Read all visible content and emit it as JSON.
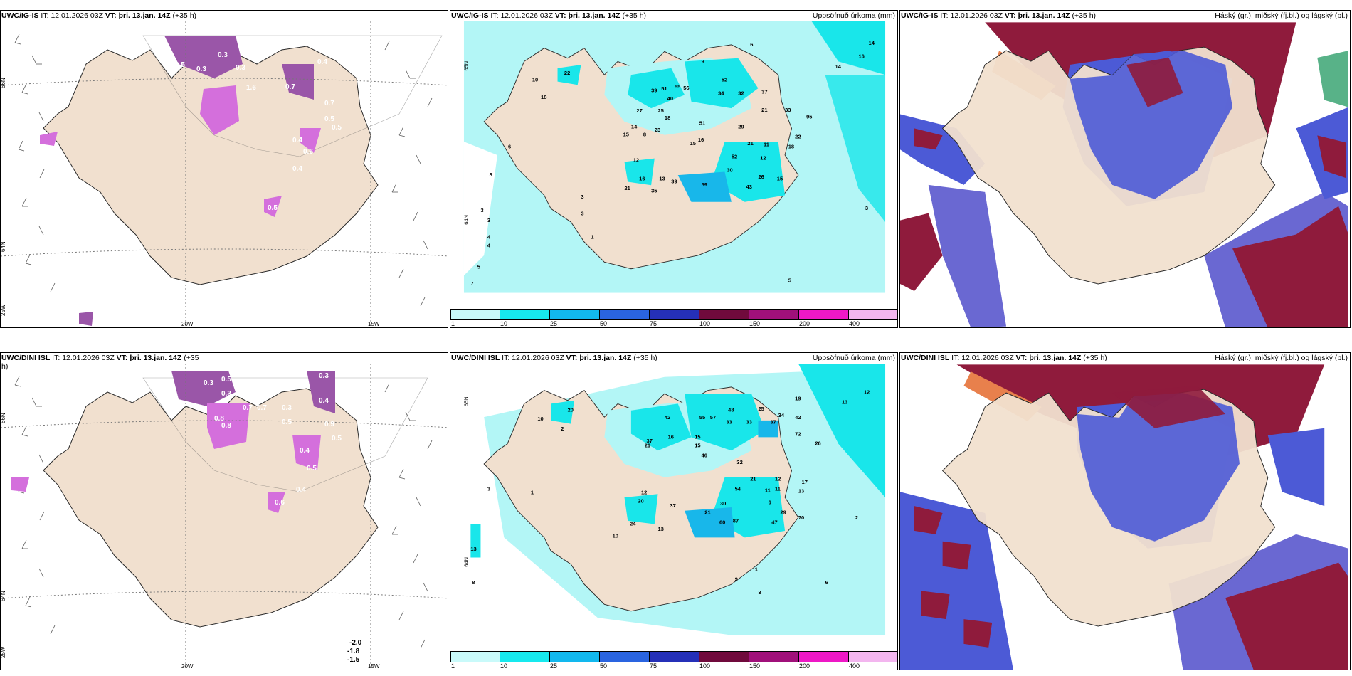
{
  "colors": {
    "land": "#f1e0cf",
    "coast": "#2a2a2a",
    "sea": "#ffffff",
    "precip_light": "#b3f6f6",
    "precip_cyan": "#19e6ea",
    "precip_blue": "#18b7ea",
    "cloud_blue": "#4c5ad6",
    "cloud_purple": "#6a68d2",
    "cloud_red": "#8f1b3c",
    "cloud_orange": "#e8804c",
    "pink": "#d46fdc",
    "purple": "#9a56a8"
  },
  "panels": [
    {
      "id": "top-left",
      "model": "UWC/IG-IS",
      "it_label": "IT:",
      "it_value": "12.01.2026 03Z",
      "vt_label": "VT:",
      "vt_value": "þri. 13.jan. 14Z",
      "lead": "(+35 h)",
      "right_title": "",
      "lat_labels": [
        "66N",
        "64N",
        "25W"
      ],
      "lon_labels": [
        "20W",
        "15W"
      ],
      "values": [
        "0.3",
        "0.5",
        "0.3",
        "0.3",
        "0.4",
        "1.6",
        "0.7",
        "0.7",
        "0.5",
        "0.5",
        "0.4",
        "0.6",
        "0.4",
        "0.5"
      ]
    },
    {
      "id": "top-middle",
      "model": "UWC/IG-IS",
      "it_label": "IT:",
      "it_value": "12.01.2026 03Z",
      "vt_label": "VT:",
      "vt_value": "þri. 13.jan. 14Z",
      "lead": "(+35 h)",
      "right_title": "Uppsöfnuð úrkoma (mm)",
      "lat_labels": [
        "65N",
        "64N"
      ],
      "values": [
        "14",
        "16",
        "14",
        "6",
        "9",
        "22",
        "10",
        "52",
        "18",
        "39",
        "51",
        "55",
        "56",
        "34",
        "32",
        "37",
        "37",
        "27",
        "40",
        "21",
        "33",
        "95",
        "25",
        "18",
        "51",
        "29",
        "22",
        "18",
        "14",
        "15",
        "8",
        "23",
        "16",
        "21",
        "11",
        "15",
        "52",
        "12",
        "12",
        "30",
        "26",
        "39",
        "59",
        "15",
        "43",
        "16",
        "21",
        "35",
        "13",
        "6",
        "3",
        "3",
        "3",
        "3",
        "4",
        "4",
        "5",
        "7",
        "3",
        "1",
        "5",
        "3"
      ]
    },
    {
      "id": "top-right",
      "model": "UWC/IG-IS",
      "it_label": "IT:",
      "it_value": "12.01.2026 03Z",
      "vt_label": "VT:",
      "vt_value": "þri. 13.jan. 14Z",
      "lead": "(+35 h)",
      "right_title": "Háský (gr.), miðský (fj.bl.) og lágský (bl.)"
    },
    {
      "id": "bottom-left",
      "model": "UWC/DINI ISL",
      "it_label": "IT:",
      "it_value": "12.01.2026 03Z",
      "vt_label": "VT:",
      "vt_value": "þri. 13.jan. 14Z",
      "lead": "(+35",
      "lead_wrap": "h)",
      "right_title": "",
      "lat_labels": [
        "66N",
        "64N",
        "25W"
      ],
      "lon_labels": [
        "20W",
        "15W"
      ],
      "values": [
        "0.3",
        "0.5",
        "0.3",
        "0.3",
        "0.4",
        "0.8",
        "0.7",
        "0.7",
        "0.3",
        "0.8",
        "0.5",
        "0.9",
        "0.5",
        "0.4",
        "0.5",
        "0.6",
        "0.4"
      ],
      "isolines": [
        "-2.0",
        "-1.8",
        "-1.5"
      ]
    },
    {
      "id": "bottom-middle",
      "model": "UWC/DINI ISL",
      "it_label": "IT:",
      "it_value": "12.01.2026 03Z",
      "vt_label": "VT:",
      "vt_value": "þri. 13.jan. 14Z",
      "lead": "(+35 h)",
      "right_title": "Uppsöfnuð úrkoma (mm)",
      "lat_labels": [
        "65N",
        "64N"
      ],
      "values": [
        "12",
        "13",
        "19",
        "25",
        "48",
        "34",
        "42",
        "20",
        "10",
        "55",
        "57",
        "33",
        "33",
        "37",
        "72",
        "26",
        "42",
        "37",
        "16",
        "15",
        "21",
        "15",
        "46",
        "32",
        "21",
        "12",
        "17",
        "13",
        "12",
        "20",
        "37",
        "21",
        "54",
        "11",
        "11",
        "6",
        "24",
        "30",
        "60",
        "87",
        "29",
        "47",
        "70",
        "2",
        "10",
        "13",
        "3",
        "2",
        "1",
        "13",
        "8",
        "2",
        "1",
        "6",
        "3"
      ]
    },
    {
      "id": "bottom-right",
      "model": "UWC/DINI ISL",
      "it_label": "IT:",
      "it_value": "12.01.2026 03Z",
      "vt_label": "VT:",
      "vt_value": "þri. 13.jan. 14Z",
      "lead": "(+35 h)",
      "right_title": "Háský (gr.), miðský (fj.bl.) og lágský (bl.)"
    }
  ],
  "colorbar": {
    "ticks": [
      "1",
      "10",
      "25",
      "50",
      "75",
      "100",
      "150",
      "200",
      "400"
    ],
    "colors": [
      "#c9fafa",
      "#17e9ee",
      "#12b8ee",
      "#2a64e0",
      "#2530b8",
      "#700a3c",
      "#a0107a",
      "#ee18c6",
      "#f3b6ef"
    ]
  }
}
